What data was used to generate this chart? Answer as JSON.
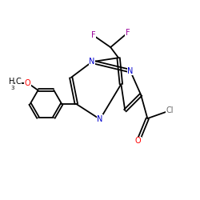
{
  "background": "#ffffff",
  "atom_colors": {
    "N": "#0000cc",
    "O": "#ff0000",
    "F": "#990099",
    "Cl": "#666666",
    "C": "#000000"
  },
  "figsize": [
    2.5,
    2.5
  ],
  "dpi": 100,
  "lw": 1.3,
  "fs": 7.0
}
